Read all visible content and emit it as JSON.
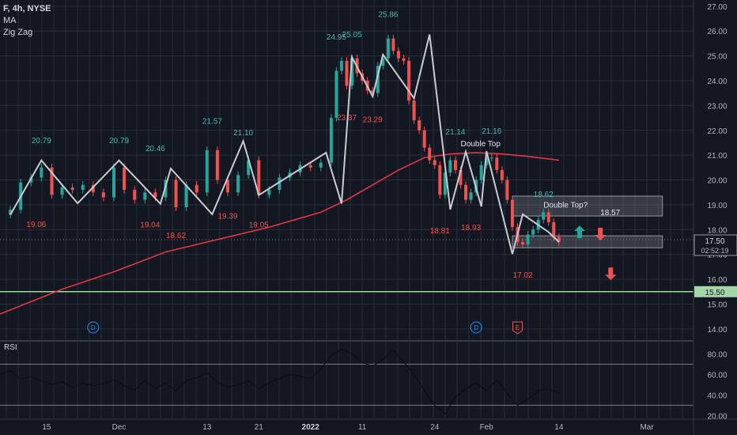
{
  "header": {
    "symbol_line": "F, 4h, NYSE",
    "indicators": [
      "MA",
      "Zig Zag"
    ],
    "rsi_label": "RSI"
  },
  "chart_data": {
    "type": "line",
    "title": "F, 4h, NYSE",
    "price_axis": {
      "ticks": [
        "27.00",
        "26.00",
        "25.00",
        "24.00",
        "23.00",
        "22.00",
        "21.00",
        "20.00",
        "19.00",
        "18.00",
        "17.00",
        "16.00",
        "15.00",
        "14.00"
      ],
      "range": [
        13.55,
        27.25
      ]
    },
    "rsi_axis": {
      "ticks": [
        "80.00",
        "60.00",
        "40.00",
        "20.00"
      ],
      "range": [
        18,
        92
      ]
    },
    "x_axis": {
      "ticks": [
        "15",
        "Dec",
        "13",
        "21",
        "2022",
        "11",
        "24",
        "Feb",
        "14",
        "Mar"
      ],
      "positions": [
        7,
        21,
        38,
        48,
        58,
        68,
        82,
        92,
        106,
        123
      ]
    },
    "x_range": [
      -2,
      132
    ],
    "zigzag": {
      "x": [
        0,
        6,
        13,
        21,
        29,
        31,
        39,
        45,
        48,
        61,
        64,
        66,
        70,
        72,
        78,
        81,
        85,
        88,
        91,
        92,
        97,
        99,
        104,
        106
      ],
      "y": [
        18.6,
        20.79,
        19.06,
        20.79,
        19.04,
        20.46,
        18.62,
        21.57,
        19.39,
        21.1,
        19.05,
        24.95,
        23.37,
        25.05,
        23.29,
        25.86,
        18.81,
        21.14,
        18.93,
        21.16,
        17.02,
        18.62,
        17.9,
        17.5
      ]
    },
    "zigzag_labels": [
      {
        "x": 6,
        "y": 20.79,
        "text": "20.79",
        "kind": "high"
      },
      {
        "x": 5,
        "y": 19.06,
        "text": "19.06",
        "kind": "low"
      },
      {
        "x": 21,
        "y": 20.79,
        "text": "20.79",
        "kind": "high"
      },
      {
        "x": 27,
        "y": 19.04,
        "text": "19.04",
        "kind": "low"
      },
      {
        "x": 28,
        "y": 20.46,
        "text": "20.46",
        "kind": "high"
      },
      {
        "x": 32,
        "y": 18.62,
        "text": "18.62",
        "kind": "low"
      },
      {
        "x": 39,
        "y": 21.57,
        "text": "21.57",
        "kind": "high"
      },
      {
        "x": 42,
        "y": 19.39,
        "text": "19.39",
        "kind": "low"
      },
      {
        "x": 45,
        "y": 21.1,
        "text": "21.10",
        "kind": "high"
      },
      {
        "x": 48,
        "y": 19.05,
        "text": "19.05",
        "kind": "low"
      },
      {
        "x": 63,
        "y": 24.95,
        "text": "24.95",
        "kind": "high"
      },
      {
        "x": 66,
        "y": 25.05,
        "text": "25.05",
        "kind": "high"
      },
      {
        "x": 65,
        "y": 23.37,
        "text": "23.37",
        "kind": "low"
      },
      {
        "x": 70,
        "y": 23.29,
        "text": "23.29",
        "kind": "low"
      },
      {
        "x": 73,
        "y": 25.86,
        "text": "25.86",
        "kind": "high"
      },
      {
        "x": 83,
        "y": 18.81,
        "text": "18.81",
        "kind": "low"
      },
      {
        "x": 86,
        "y": 21.14,
        "text": "21.14",
        "kind": "high"
      },
      {
        "x": 89,
        "y": 18.93,
        "text": "18.93",
        "kind": "low"
      },
      {
        "x": 93,
        "y": 21.16,
        "text": "21.16",
        "kind": "high"
      },
      {
        "x": 103,
        "y": 18.62,
        "text": "18.62",
        "kind": "high"
      },
      {
        "x": 99,
        "y": 17.02,
        "text": "17.02",
        "kind": "low"
      }
    ],
    "moving_average": {
      "x": [
        -2,
        10,
        20,
        30,
        40,
        50,
        60,
        65,
        70,
        75,
        80,
        85,
        90,
        95,
        100,
        106
      ],
      "y": [
        14.6,
        15.6,
        16.3,
        17.1,
        17.6,
        18.1,
        18.7,
        19.2,
        19.8,
        20.4,
        20.9,
        21.05,
        21.1,
        21.05,
        20.95,
        20.8
      ]
    },
    "candles_close": {
      "x": [
        0,
        2,
        4,
        6,
        8,
        10,
        12,
        14,
        16,
        18,
        20,
        22,
        24,
        26,
        28,
        30,
        32,
        34,
        36,
        38,
        40,
        42,
        44,
        46,
        48,
        50,
        52,
        54,
        56,
        58,
        60,
        62,
        63,
        64,
        65,
        66,
        67,
        68,
        69,
        70,
        71,
        72,
        73,
        74,
        75,
        76,
        77,
        78,
        79,
        80,
        81,
        82,
        83,
        84,
        85,
        86,
        87,
        88,
        89,
        90,
        91,
        92,
        93,
        94,
        95,
        96,
        97,
        98,
        99,
        100,
        101,
        102,
        103,
        104,
        105,
        106
      ],
      "y": [
        18.8,
        19.9,
        20.1,
        20.5,
        19.4,
        19.7,
        19.6,
        19.8,
        19.5,
        19.3,
        20.5,
        19.6,
        19.2,
        19.5,
        19.3,
        20.0,
        18.9,
        19.8,
        19.5,
        21.2,
        20.0,
        19.5,
        20.2,
        20.8,
        19.4,
        19.6,
        20.1,
        20.3,
        20.6,
        20.5,
        20.7,
        22.5,
        24.4,
        24.8,
        23.8,
        24.9,
        24.3,
        24.0,
        23.6,
        23.5,
        24.6,
        24.9,
        25.7,
        25.2,
        24.9,
        24.8,
        23.2,
        22.4,
        22.0,
        21.3,
        20.8,
        20.6,
        19.4,
        20.3,
        20.8,
        20.4,
        19.8,
        19.2,
        19.5,
        20.0,
        20.6,
        20.9,
        20.9,
        20.4,
        20.0,
        19.2,
        18.1,
        17.5,
        17.4,
        17.8,
        18.0,
        18.4,
        18.7,
        18.3,
        17.7,
        17.5
      ]
    },
    "annotations": [
      {
        "text": "Double Top",
        "x": 87,
        "y": 21.35
      },
      {
        "text": "Double Top?",
        "x": 103,
        "y": 18.88
      },
      {
        "text": "18.57",
        "x": 114,
        "y": 18.58
      }
    ],
    "zones": [
      {
        "x0": 97,
        "x1": 126,
        "y0": 18.55,
        "y1": 19.35
      },
      {
        "x0": 97,
        "x1": 126,
        "y0": 17.27,
        "y1": 17.75
      }
    ],
    "horizontal_line": {
      "y": 15.5,
      "label": "15.50"
    },
    "last_price": {
      "value": "17.50",
      "countdown": "02:52:19"
    },
    "arrows": [
      {
        "x": 110,
        "y": 17.88,
        "dir": "up"
      },
      {
        "x": 114,
        "y": 17.85,
        "dir": "down"
      },
      {
        "x": 116,
        "y": 16.25,
        "dir": "down"
      }
    ],
    "event_markers": [
      {
        "x": 16,
        "text": "D",
        "type": "dividend"
      },
      {
        "x": 90,
        "text": "D",
        "type": "dividend"
      },
      {
        "x": 98,
        "text": "E",
        "type": "earnings"
      }
    ],
    "rsi": {
      "x": [
        -2,
        0,
        2,
        4,
        6,
        8,
        10,
        12,
        14,
        16,
        18,
        20,
        22,
        24,
        26,
        28,
        30,
        32,
        34,
        36,
        38,
        40,
        42,
        44,
        46,
        48,
        50,
        52,
        54,
        56,
        58,
        60,
        62,
        64,
        66,
        68,
        70,
        72,
        74,
        76,
        78,
        80,
        82,
        84,
        86,
        88,
        90,
        92,
        94,
        96,
        98,
        100,
        102,
        104,
        106
      ],
      "y": [
        60,
        64,
        55,
        58,
        54,
        50,
        53,
        47,
        52,
        49,
        51,
        55,
        49,
        45,
        54,
        46,
        52,
        44,
        54,
        57,
        62,
        52,
        48,
        50,
        54,
        46,
        52,
        56,
        60,
        58,
        56,
        66,
        78,
        85,
        80,
        72,
        68,
        75,
        84,
        72,
        60,
        44,
        30,
        22,
        38,
        46,
        52,
        44,
        55,
        42,
        30,
        36,
        44,
        46,
        42
      ]
    },
    "rsi_levels": [
      70,
      30
    ]
  },
  "colors": {
    "background": "#131722",
    "grid": "#2a2e39",
    "up": "#26a69a",
    "down": "#ef5350",
    "zigzag": "#c9cbd1",
    "ma": "#f23645",
    "hline": "#a5d6a7",
    "zone_fill": "rgba(120,123,134,0.35)",
    "text": "#b2b5be"
  }
}
